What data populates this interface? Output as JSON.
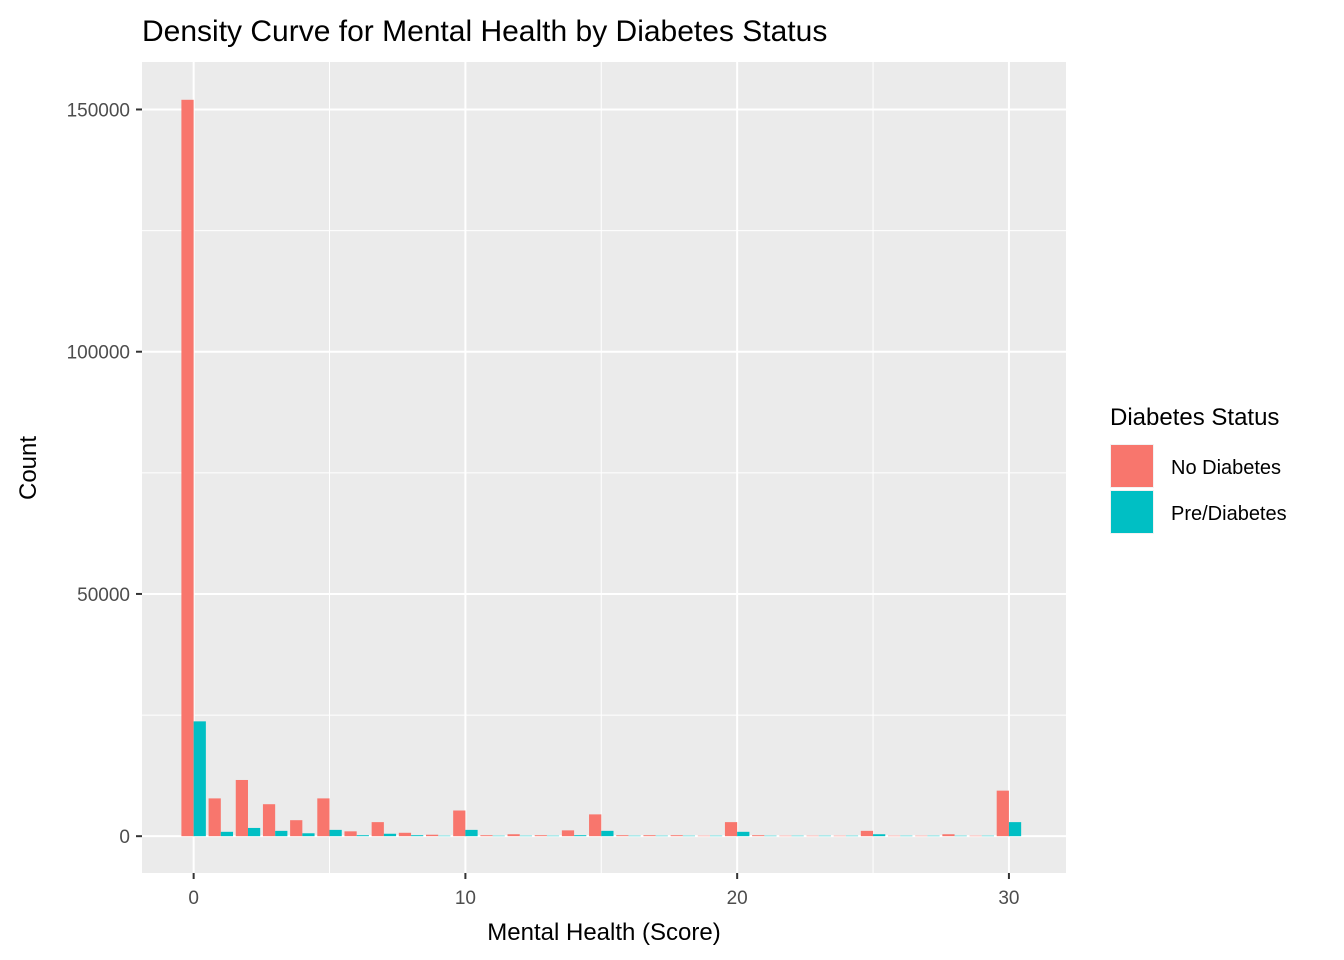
{
  "chart_data": {
    "type": "bar",
    "title": "Density Curve for Mental Health by Diabetes Status",
    "xlabel": "Mental Health (Score)",
    "ylabel": "Count",
    "x": [
      0,
      1,
      2,
      3,
      4,
      5,
      6,
      7,
      8,
      9,
      10,
      11,
      12,
      13,
      14,
      15,
      16,
      17,
      18,
      19,
      20,
      21,
      22,
      23,
      24,
      25,
      26,
      27,
      28,
      29,
      30
    ],
    "xlim": [
      -1.9,
      32.1
    ],
    "ylim": [
      -7600,
      159800
    ],
    "x_ticks": [
      "0",
      "10",
      "20",
      "30"
    ],
    "y_ticks": [
      "0",
      "50000",
      "100000",
      "150000"
    ],
    "grid": true,
    "legend": {
      "title": "Diabetes Status",
      "position": "right"
    },
    "series": [
      {
        "name": "No Diabetes",
        "color": "#F8766D",
        "values": [
          152000,
          7800,
          11600,
          6600,
          3300,
          7800,
          1000,
          2900,
          700,
          300,
          5300,
          200,
          400,
          200,
          1200,
          4500,
          200,
          200,
          200,
          100,
          2900,
          200,
          100,
          100,
          100,
          1100,
          100,
          100,
          400,
          100,
          9400
        ]
      },
      {
        "name": "Pre/Diabetes",
        "color": "#00BFC4",
        "values": [
          23700,
          900,
          1700,
          1100,
          600,
          1300,
          200,
          500,
          200,
          100,
          1300,
          100,
          100,
          100,
          200,
          1100,
          100,
          100,
          100,
          100,
          900,
          100,
          100,
          100,
          100,
          400,
          100,
          100,
          100,
          100,
          2900
        ]
      }
    ]
  }
}
